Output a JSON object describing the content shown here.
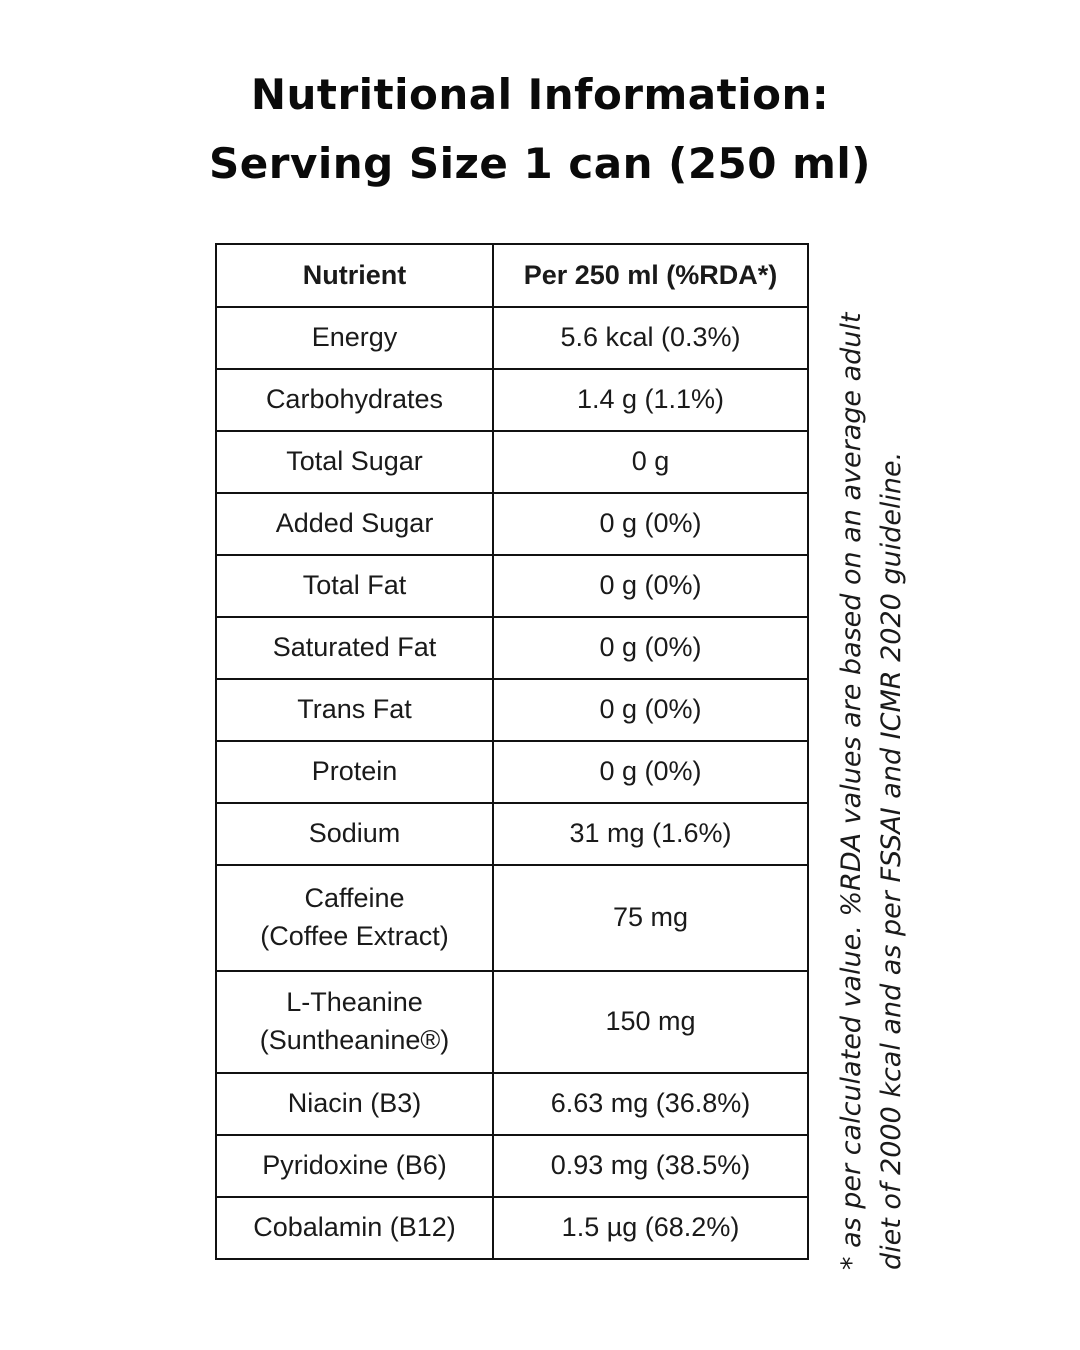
{
  "header": {
    "title_line1": "Nutritional Information:",
    "title_line2": "Serving Size 1 can (250 ml)"
  },
  "table": {
    "columns": [
      "Nutrient",
      "Per 250 ml (%RDA*)"
    ],
    "rows": [
      {
        "nutrient": "Energy",
        "value": "5.6 kcal (0.3%)"
      },
      {
        "nutrient": "Carbohydrates",
        "value": "1.4 g (1.1%)"
      },
      {
        "nutrient": "Total Sugar",
        "value": "0 g"
      },
      {
        "nutrient": "Added Sugar",
        "value": "0 g (0%)"
      },
      {
        "nutrient": "Total Fat",
        "value": "0 g (0%)"
      },
      {
        "nutrient": "Saturated Fat",
        "value": "0 g (0%)"
      },
      {
        "nutrient": "Trans Fat",
        "value": "0 g (0%)"
      },
      {
        "nutrient": "Protein",
        "value": "0 g (0%)"
      },
      {
        "nutrient": "Sodium",
        "value": "31 mg (1.6%)"
      },
      {
        "nutrient_line1": "Caffeine",
        "nutrient_line2": "(Coffee Extract)",
        "value": "75 mg"
      },
      {
        "nutrient_line1": "L-Theanine",
        "nutrient_line2": "(Suntheanine®)",
        "value": "150 mg"
      },
      {
        "nutrient": "Niacin (B3)",
        "value": "6.63 mg (36.8%)"
      },
      {
        "nutrient": "Pyridoxine (B6)",
        "value": "0.93 mg (38.5%)"
      },
      {
        "nutrient": "Cobalamin (B12)",
        "value": "1.5 µg (68.2%)"
      }
    ]
  },
  "footnote": {
    "line1": "* as per calculated value.  %RDA values are based on an average adult",
    "line2": "diet of 2000 kcal and as per FSSAI and ICMR 2020 guideline."
  }
}
